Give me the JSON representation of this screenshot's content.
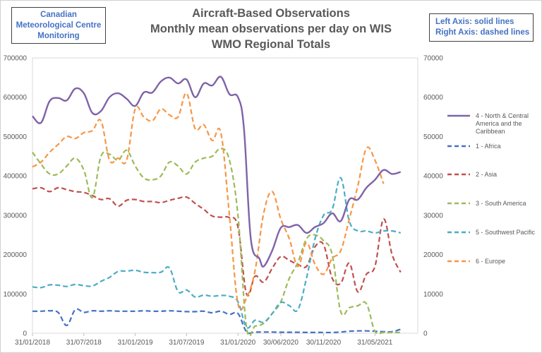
{
  "header": {
    "title_lines": [
      "Aircraft-Based Observations",
      "Monthly mean observations per day on WIS",
      "WMO Regional Totals"
    ],
    "source_lines": [
      "Canadian",
      "Meteorological Centre",
      "Monitoring"
    ],
    "axis_note_lines": [
      "Left Axis: solid lines",
      "Right Axis: dashed lines"
    ]
  },
  "chart_data": {
    "type": "line",
    "title": "Aircraft-Based Observations Monthly mean observations per day on WIS WMO Regional Totals",
    "left_axis": {
      "ylim": [
        0,
        700000
      ],
      "ticks": [
        "0",
        "100000",
        "200000",
        "300000",
        "400000",
        "500000",
        "600000",
        "700000"
      ]
    },
    "right_axis": {
      "ylim": [
        0,
        70000
      ],
      "ticks": [
        "0",
        "10000",
        "20000",
        "30000",
        "40000",
        "50000",
        "60000",
        "70000"
      ]
    },
    "x_tick_labels": [
      "31/01/2018",
      "31/07/2018",
      "31/01/2019",
      "31/07/2019",
      "31/01/2020",
      "30/06/2020",
      "30/11/2020",
      "31/05/2021"
    ],
    "x_tick_months": [
      0,
      6,
      12,
      18,
      24,
      29,
      34,
      40
    ],
    "x_range_months": [
      0,
      45
    ],
    "legend_position": "right",
    "series": [
      {
        "name": "4 - North & Central America and the Caribbean",
        "axis": "left",
        "style": "solid",
        "color": "#7f63a8",
        "values": [
          [
            0,
            552000
          ],
          [
            1,
            535000
          ],
          [
            2,
            590000
          ],
          [
            3,
            598000
          ],
          [
            4,
            592000
          ],
          [
            5,
            622000
          ],
          [
            6,
            610000
          ],
          [
            7,
            560000
          ],
          [
            8,
            565000
          ],
          [
            9,
            600000
          ],
          [
            10,
            610000
          ],
          [
            11,
            596000
          ],
          [
            12,
            578000
          ],
          [
            13,
            612000
          ],
          [
            14,
            612000
          ],
          [
            15,
            640000
          ],
          [
            16,
            650000
          ],
          [
            17,
            635000
          ],
          [
            18,
            645000
          ],
          [
            19,
            600000
          ],
          [
            20,
            635000
          ],
          [
            21,
            630000
          ],
          [
            22,
            652000
          ],
          [
            23,
            608000
          ],
          [
            24,
            600000
          ],
          [
            24.7,
            520000
          ],
          [
            25.5,
            240000
          ],
          [
            26.5,
            190000
          ],
          [
            27,
            170000
          ],
          [
            28,
            210000
          ],
          [
            29,
            268000
          ],
          [
            30,
            270000
          ],
          [
            31,
            275000
          ],
          [
            32,
            255000
          ],
          [
            33,
            270000
          ],
          [
            34,
            280000
          ],
          [
            35,
            305000
          ],
          [
            36,
            285000
          ],
          [
            37,
            340000
          ],
          [
            38,
            340000
          ],
          [
            39,
            370000
          ],
          [
            40,
            390000
          ],
          [
            41,
            415000
          ],
          [
            42,
            405000
          ],
          [
            43,
            410000
          ]
        ]
      },
      {
        "name": "1 - Africa",
        "axis": "right",
        "style": "dashed",
        "color": "#4472c4",
        "values": [
          [
            0,
            5600
          ],
          [
            1,
            5600
          ],
          [
            2,
            5700
          ],
          [
            3,
            5300
          ],
          [
            4,
            2000
          ],
          [
            5,
            6000
          ],
          [
            6,
            5300
          ],
          [
            7,
            5700
          ],
          [
            8,
            5600
          ],
          [
            9,
            5700
          ],
          [
            10,
            5600
          ],
          [
            11,
            5600
          ],
          [
            12,
            5600
          ],
          [
            13,
            5700
          ],
          [
            14,
            5600
          ],
          [
            15,
            5600
          ],
          [
            16,
            5700
          ],
          [
            17,
            5600
          ],
          [
            18,
            5500
          ],
          [
            19,
            5500
          ],
          [
            20,
            5600
          ],
          [
            21,
            5200
          ],
          [
            22,
            5600
          ],
          [
            23,
            4800
          ],
          [
            24,
            5000
          ],
          [
            25,
            400
          ],
          [
            26,
            300
          ],
          [
            27,
            300
          ],
          [
            28,
            300
          ],
          [
            29,
            250
          ],
          [
            30,
            250
          ],
          [
            31,
            250
          ],
          [
            32,
            200
          ],
          [
            33,
            200
          ],
          [
            34,
            200
          ],
          [
            35,
            200
          ],
          [
            36,
            300
          ],
          [
            37,
            500
          ],
          [
            38,
            600
          ],
          [
            39,
            600
          ],
          [
            40,
            500
          ],
          [
            41,
            400
          ],
          [
            42,
            400
          ],
          [
            43,
            1000
          ]
        ]
      },
      {
        "name": "2 - Asia",
        "axis": "right",
        "style": "dashed",
        "color": "#c0504d",
        "values": [
          [
            0,
            36700
          ],
          [
            1,
            37000
          ],
          [
            2,
            36000
          ],
          [
            3,
            37000
          ],
          [
            4,
            36500
          ],
          [
            5,
            36000
          ],
          [
            6,
            35800
          ],
          [
            7,
            35000
          ],
          [
            8,
            34000
          ],
          [
            9,
            34200
          ],
          [
            10,
            32300
          ],
          [
            11,
            33800
          ],
          [
            12,
            34000
          ],
          [
            13,
            33500
          ],
          [
            14,
            33500
          ],
          [
            15,
            33200
          ],
          [
            16,
            33800
          ],
          [
            17,
            34300
          ],
          [
            18,
            34600
          ],
          [
            19,
            33000
          ],
          [
            20,
            31500
          ],
          [
            21,
            29800
          ],
          [
            22,
            29500
          ],
          [
            23,
            29400
          ],
          [
            24,
            27000
          ],
          [
            25,
            10000
          ],
          [
            26,
            14500
          ],
          [
            27,
            13000
          ],
          [
            28,
            16500
          ],
          [
            29,
            19500
          ],
          [
            30,
            18500
          ],
          [
            31,
            17500
          ],
          [
            32,
            17000
          ],
          [
            33,
            22000
          ],
          [
            34,
            22500
          ],
          [
            35,
            14000
          ],
          [
            36,
            12700
          ],
          [
            37,
            17800
          ],
          [
            38,
            10500
          ],
          [
            39,
            15000
          ],
          [
            40,
            17000
          ],
          [
            41,
            29000
          ],
          [
            42,
            20000
          ],
          [
            43,
            15500
          ]
        ]
      },
      {
        "name": "3  - South America",
        "axis": "right",
        "style": "dashed",
        "color": "#9bbb59",
        "values": [
          [
            0,
            46000
          ],
          [
            1,
            43000
          ],
          [
            2,
            40500
          ],
          [
            3,
            40500
          ],
          [
            4,
            42500
          ],
          [
            5,
            44500
          ],
          [
            6,
            41500
          ],
          [
            7,
            34500
          ],
          [
            8,
            45000
          ],
          [
            9,
            45500
          ],
          [
            10,
            44000
          ],
          [
            11,
            46500
          ],
          [
            12,
            42500
          ],
          [
            13,
            39500
          ],
          [
            14,
            39000
          ],
          [
            15,
            40000
          ],
          [
            16,
            43500
          ],
          [
            17,
            42500
          ],
          [
            18,
            40500
          ],
          [
            19,
            43500
          ],
          [
            20,
            44500
          ],
          [
            21,
            45000
          ],
          [
            22,
            47000
          ],
          [
            23,
            44000
          ],
          [
            24,
            30000
          ],
          [
            25,
            1500
          ],
          [
            26,
            1800
          ],
          [
            27,
            2500
          ],
          [
            28,
            5000
          ],
          [
            29,
            8000
          ],
          [
            30,
            14000
          ],
          [
            31,
            18000
          ],
          [
            32,
            24000
          ],
          [
            33,
            25000
          ],
          [
            34,
            23500
          ],
          [
            35,
            20000
          ],
          [
            36,
            5500
          ],
          [
            37,
            6500
          ],
          [
            38,
            7000
          ],
          [
            39,
            7500
          ],
          [
            40,
            500
          ],
          [
            41,
            200
          ],
          [
            42,
            200
          ],
          [
            43,
            200
          ]
        ]
      },
      {
        "name": "5 - Southwest Pacific",
        "axis": "right",
        "style": "dashed",
        "color": "#4bacc6",
        "values": [
          [
            0,
            11800
          ],
          [
            1,
            11600
          ],
          [
            2,
            12300
          ],
          [
            3,
            12200
          ],
          [
            4,
            11900
          ],
          [
            5,
            12400
          ],
          [
            6,
            12100
          ],
          [
            7,
            12000
          ],
          [
            8,
            13200
          ],
          [
            9,
            14200
          ],
          [
            10,
            15700
          ],
          [
            11,
            15800
          ],
          [
            12,
            16000
          ],
          [
            13,
            15500
          ],
          [
            14,
            15400
          ],
          [
            15,
            15500
          ],
          [
            16,
            16600
          ],
          [
            17,
            10600
          ],
          [
            18,
            11000
          ],
          [
            19,
            9200
          ],
          [
            20,
            9700
          ],
          [
            21,
            9400
          ],
          [
            22,
            9600
          ],
          [
            23,
            9400
          ],
          [
            24,
            8000
          ],
          [
            25,
            1500
          ],
          [
            26,
            3300
          ],
          [
            27,
            2800
          ],
          [
            28,
            5000
          ],
          [
            29,
            7800
          ],
          [
            30,
            7000
          ],
          [
            31,
            6000
          ],
          [
            32,
            14000
          ],
          [
            33,
            24000
          ],
          [
            34,
            30000
          ],
          [
            35,
            31500
          ],
          [
            36,
            39500
          ],
          [
            37,
            28500
          ],
          [
            38,
            26000
          ],
          [
            39,
            26000
          ],
          [
            40,
            25500
          ],
          [
            41,
            26000
          ],
          [
            42,
            26000
          ],
          [
            43,
            25500
          ]
        ]
      },
      {
        "name": "6 - Europe",
        "axis": "right",
        "style": "dashed",
        "color": "#f79646",
        "values": [
          [
            0,
            42300
          ],
          [
            1,
            43500
          ],
          [
            2,
            46000
          ],
          [
            3,
            48000
          ],
          [
            4,
            50000
          ],
          [
            5,
            49500
          ],
          [
            6,
            51000
          ],
          [
            7,
            51500
          ],
          [
            8,
            54000
          ],
          [
            9,
            44000
          ],
          [
            10,
            44500
          ],
          [
            11,
            44000
          ],
          [
            12,
            57000
          ],
          [
            13,
            55000
          ],
          [
            14,
            54000
          ],
          [
            15,
            57000
          ],
          [
            16,
            55500
          ],
          [
            17,
            55000
          ],
          [
            18,
            61000
          ],
          [
            19,
            52000
          ],
          [
            20,
            53000
          ],
          [
            21,
            49000
          ],
          [
            22,
            51000
          ],
          [
            23,
            30000
          ],
          [
            24,
            7500
          ],
          [
            25,
            9000
          ],
          [
            26,
            16000
          ],
          [
            27,
            30500
          ],
          [
            28,
            36000
          ],
          [
            29,
            29000
          ],
          [
            30,
            24000
          ],
          [
            31,
            17000
          ],
          [
            32,
            23000
          ],
          [
            33,
            17500
          ],
          [
            34,
            15000
          ],
          [
            35,
            19000
          ],
          [
            36,
            21000
          ],
          [
            37,
            29000
          ],
          [
            38,
            37500
          ],
          [
            39,
            47000
          ],
          [
            40,
            44000
          ],
          [
            41,
            38000
          ]
        ]
      }
    ]
  }
}
